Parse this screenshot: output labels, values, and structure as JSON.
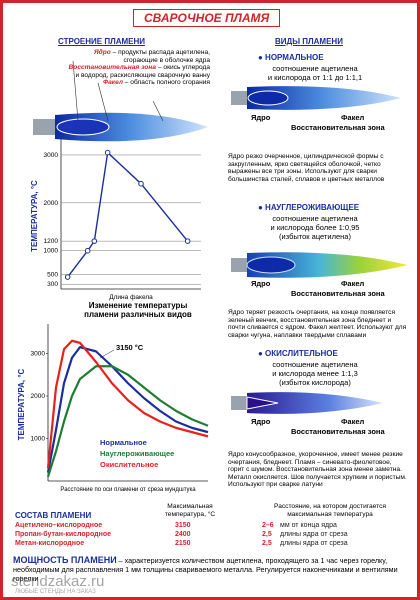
{
  "title": "СВАРОЧНОЕ ПЛАМЯ",
  "structure": {
    "heading": "СТРОЕНИЕ ПЛАМЕНИ",
    "items": [
      {
        "term": "Ядро",
        "text": " – продукты распада ацетилена, сгорающие в оболочке ядра"
      },
      {
        "term": "Восстановительная зона",
        "text": " – окись углерода и водород, раскисляющие сварочную ванну"
      },
      {
        "term": "Факел",
        "text": " – область полного сгорания"
      }
    ]
  },
  "temperature_chart": {
    "type": "line",
    "y_label": "ТЕМПЕРАТУРА, °С",
    "x_label": "Длина факела",
    "xlim": [
      -0.5,
      10
    ],
    "ylim": [
      200,
      3250
    ],
    "yticks": [
      300,
      500,
      1000,
      1200,
      2000,
      3000
    ],
    "grid": true,
    "x": [
      0,
      1.5,
      2,
      3,
      5.5,
      9
    ],
    "series": [
      {
        "color": "#1a2f9c",
        "values": [
          450,
          1000,
          1200,
          3050,
          2400,
          1200
        ]
      }
    ]
  },
  "comparison_chart": {
    "type": "line",
    "title": "Изменение температуры пламени различных видов",
    "y_label": "ТЕМПЕРАТУРА, °С",
    "x_label": "Расстояние по оси пламени от среза мундштука",
    "annotation": "3150 °С",
    "xlim": [
      0,
      10
    ],
    "ylim": [
      0,
      3600
    ],
    "yticks": [
      1000,
      2000,
      3000
    ],
    "x": [
      0,
      0.5,
      1,
      1.5,
      2,
      3,
      4,
      5,
      6,
      7,
      8,
      9,
      10
    ],
    "series": [
      {
        "name": "Нормальное",
        "color": "#1a2f9c",
        "values": [
          200,
          1200,
          2300,
          2900,
          3150,
          3050,
          2700,
          2300,
          1950,
          1650,
          1400,
          1250,
          1150
        ]
      },
      {
        "name": "Науглероживающее",
        "color": "#1e7d32",
        "values": [
          100,
          700,
          1400,
          2000,
          2400,
          2700,
          2700,
          2500,
          2200,
          1900,
          1650,
          1450,
          1300
        ]
      },
      {
        "name": "Окислительное",
        "color": "#e8211c",
        "values": [
          300,
          2200,
          3100,
          3300,
          3250,
          2800,
          2300,
          1900,
          1600,
          1400,
          1250,
          1150,
          1050
        ]
      }
    ]
  },
  "types": {
    "heading": "ВИДЫ ПЛАМЕНИ",
    "items": [
      {
        "name": "НОРМАЛЬНОЕ",
        "subtitle": [
          "соотношение ацетилена",
          "и кислорода от 1:1 до 1:1,1"
        ],
        "labels": [
          "Ядро",
          "Факел",
          "Восстановительная зона"
        ],
        "description": "Ядро резко очерченное, цилиндрической формы с закругленным, ярко светящейся оболочкой, четко выражены все три зоны. Используют для сварки большинства сталей, сплавов и цветных металлов"
      },
      {
        "name": "НАУГЛЕРОЖИВАЮЩЕЕ",
        "subtitle": [
          "соотношение ацетилена",
          "и кислорода более 1:0,95",
          "(избыток ацетилена)"
        ],
        "labels": [
          "Ядро",
          "Факел",
          "Восстановительная зона"
        ],
        "description": "Ядро теряет резкость очертания, на конце появляется зеленый венчик, восстановительная зона бледнеет и почти сливается с ядром. Факел желтеет. Используют для сварки чугуна, наплавки твердыми сплавами"
      },
      {
        "name": "ОКИСЛИТЕЛЬНОЕ",
        "subtitle": [
          "соотношение ацетилена",
          "и кислорода менее 1:1,3",
          "(избыток кислорода)"
        ],
        "labels": [
          "Ядро",
          "Факел",
          "Восстановительная зона"
        ],
        "description": "Ядро конусообразное, укороченное, имеет менее резкие очертания, бледнеет. Пламя – синевато-фиолетовое, горит с шумом. Восстановительная зона менее заметна. Металл окисляется. Шов получается хрупким и пористым. Используют при сварке латуни"
      }
    ]
  },
  "table": {
    "title": "СОСТАВ ПЛАМЕНИ",
    "columns": [
      "Максимальная температура, °С",
      "Расстояние, на котором достигается максимальная температура"
    ],
    "rows": [
      [
        "Ацетилено–кислородное",
        "3150",
        "2–6",
        "мм от конца ядра"
      ],
      [
        "Пропан-бутан-кислородное",
        "2400",
        "2,5",
        "длины ядра от среза"
      ],
      [
        "Метан-кислородное",
        "2150",
        "2,5",
        "длины ядра от среза"
      ]
    ]
  },
  "power": {
    "term": "МОЩНОСТЬ ПЛАМЕНИ",
    "text": " – характеризуется количеством ацетилена, проходящего за 1 час через горелку, необходимым для расплавления 1 мм толщины свариваемого металла. Регулируется наконечниками и вентилями горелки"
  },
  "watermark": {
    "site": "stendzakaz.ru",
    "slogan": "ЛЮБЫЕ СТЕНДЫ НА ЗАКАЗ"
  }
}
